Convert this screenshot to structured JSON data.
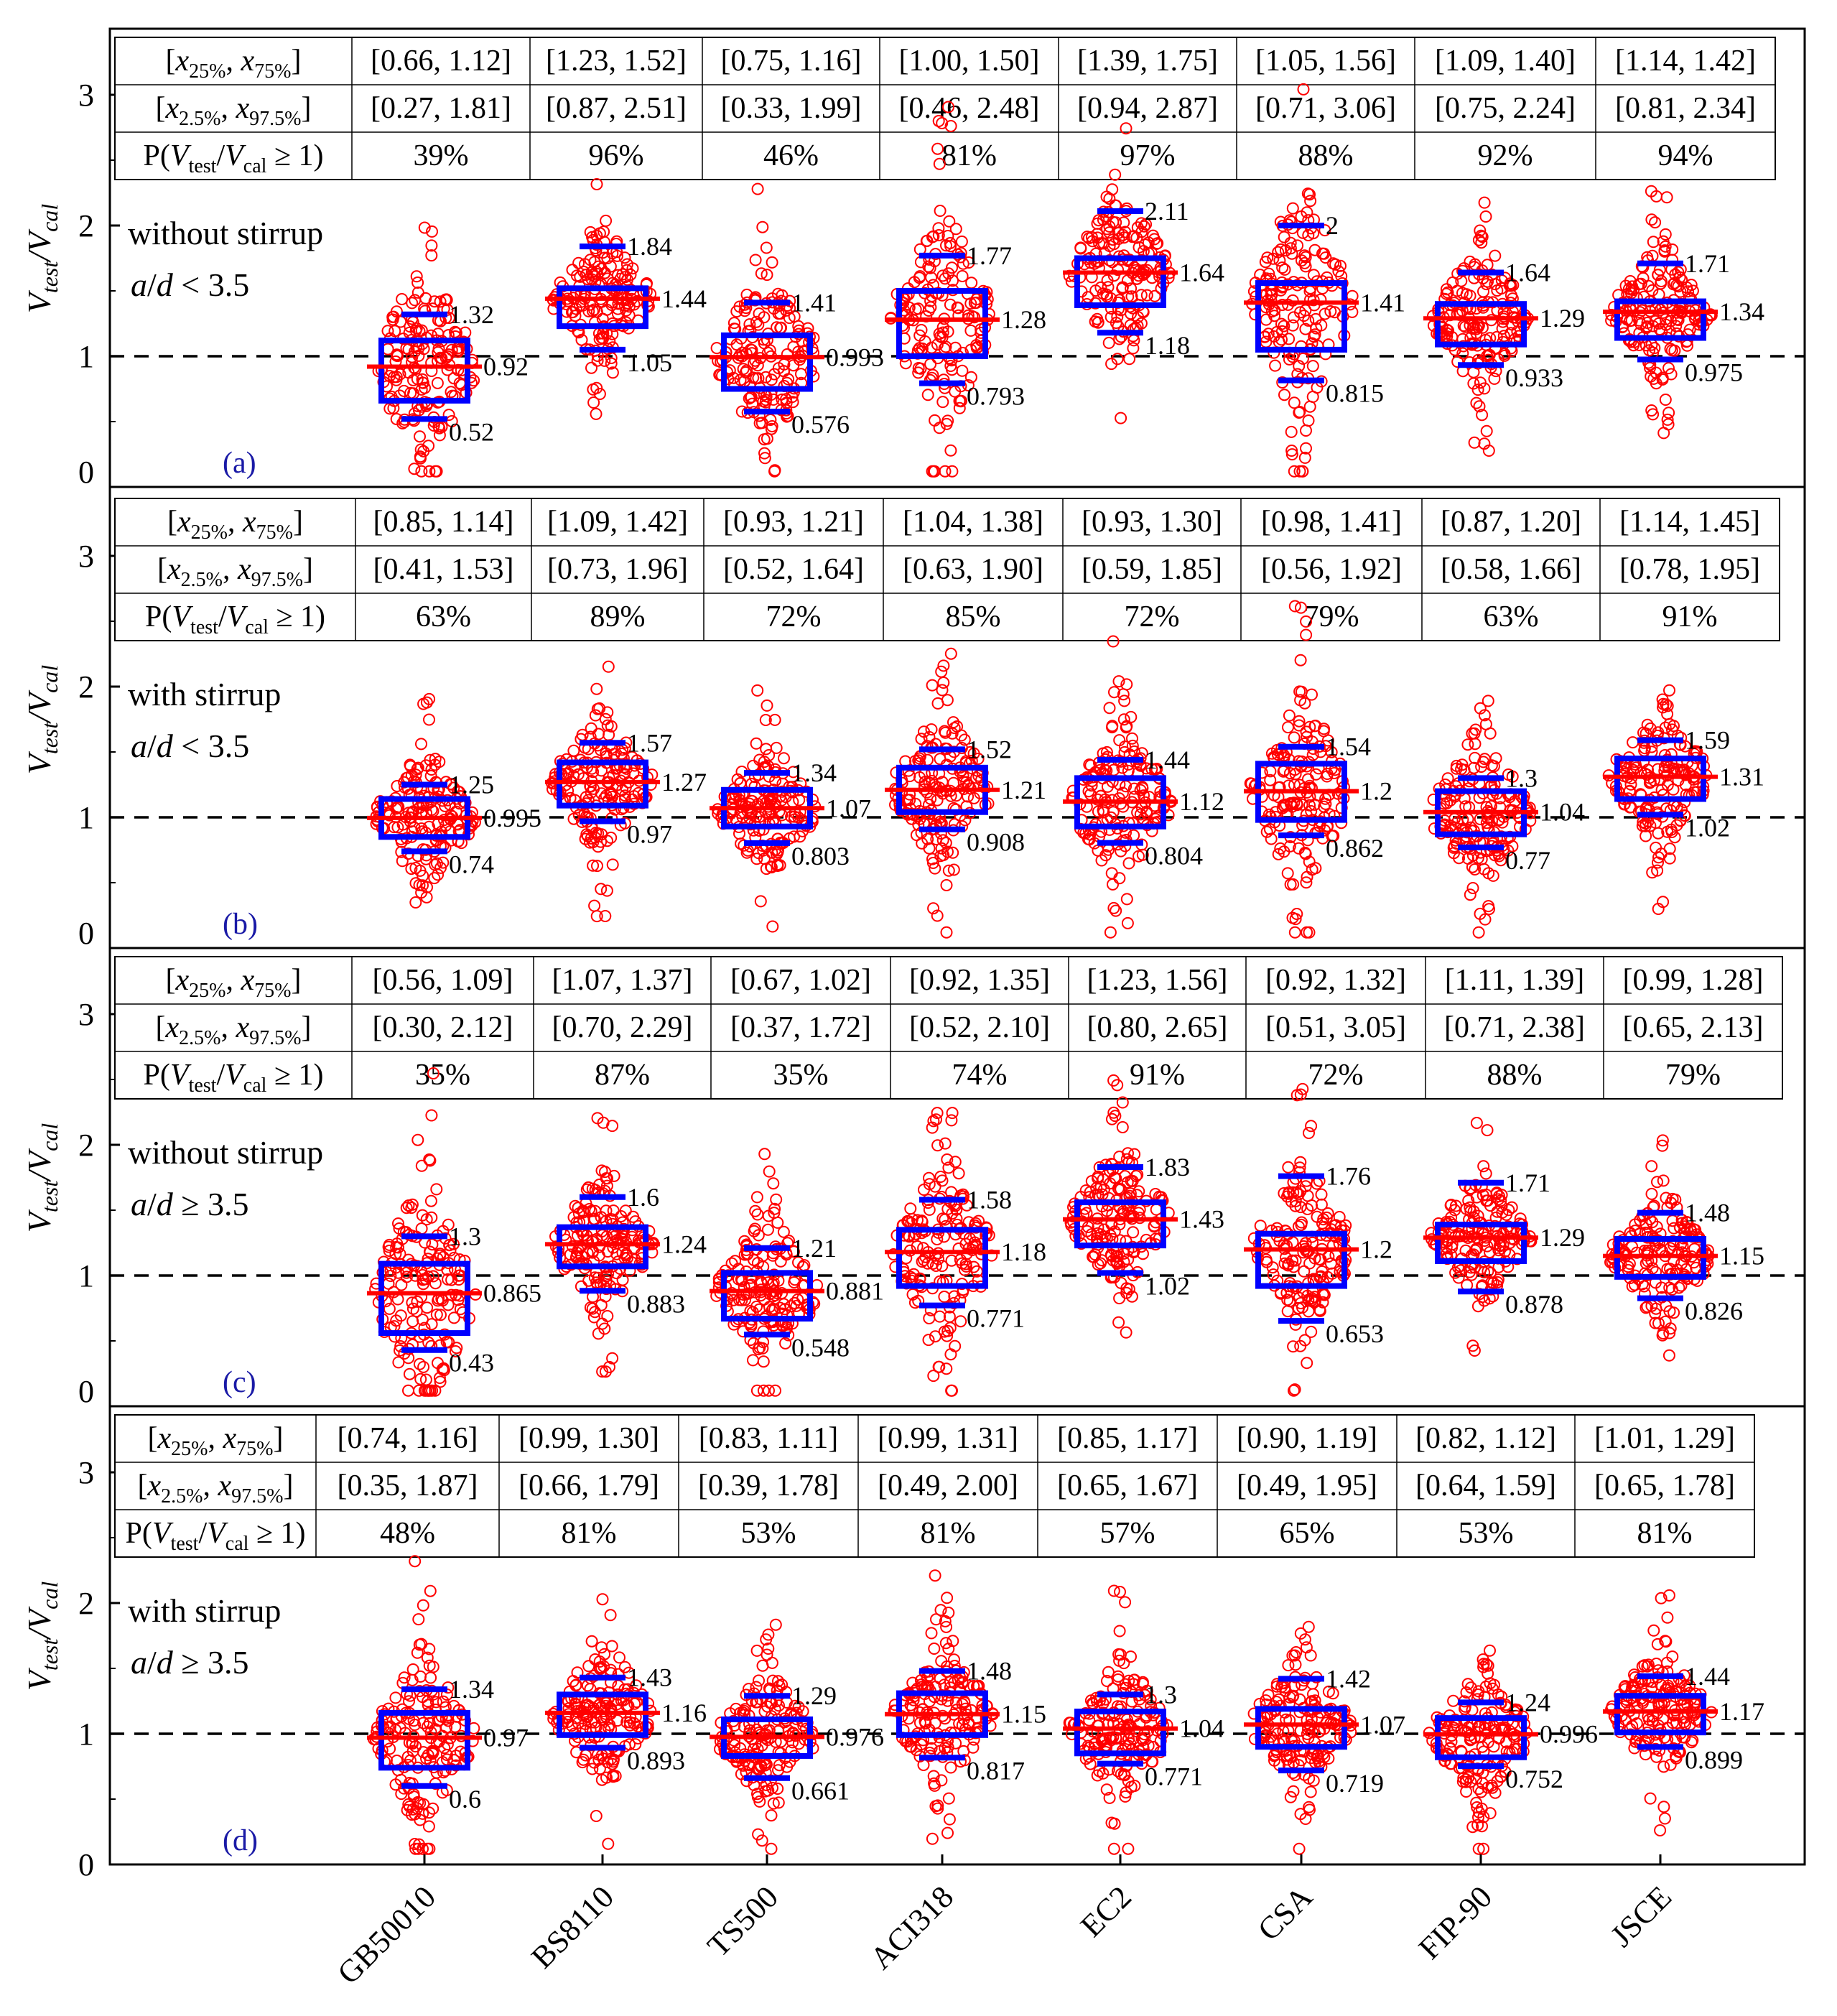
{
  "chart_data": {
    "type": "scatter",
    "categories": [
      "GB50010",
      "BS8110",
      "TS500",
      "ACI318",
      "EC2",
      "CSA",
      "FIP-90",
      "JSCE"
    ],
    "y_label_main": "V",
    "y_label_test_sub": "test",
    "y_label_slash": "/V",
    "y_label_cal_sub": "cal",
    "ylim": [
      0,
      3.5
    ],
    "yticks": [
      "0",
      "1",
      "2",
      "3"
    ],
    "reference_line": 1,
    "row_labels": [
      {
        "pre": "[x",
        "s1": "25%",
        "mid": ", x",
        "s2": "75%",
        "post": "]"
      },
      {
        "pre": "[x",
        "s1": "2.5%",
        "mid": ", x",
        "s2": "97.5%",
        "post": "]"
      },
      {
        "pre": "P(V",
        "s1": "test",
        "mid": "/V",
        "s2": "cal",
        "post": " ≥ 1)"
      }
    ],
    "colors": {
      "points": "#ff0000",
      "box": "#0000ff",
      "median": "#ff0000",
      "refline": "#000000",
      "panel_label": "#1a1aa6"
    },
    "panels": [
      {
        "label": "(a)",
        "note1": "without stirrup",
        "note2_pre": "a",
        "note2_mid": "/",
        "note2_d": "d",
        "note2_post": " < 3.5",
        "table": [
          [
            "[0.66, 1.12]",
            "[1.23, 1.52]",
            "[0.75, 1.16]",
            "[1.00, 1.50]",
            "[1.39, 1.75]",
            "[1.05, 1.56]",
            "[1.09, 1.40]",
            "[1.14, 1.42]"
          ],
          [
            "[0.27, 1.81]",
            "[0.87, 2.51]",
            "[0.33, 1.99]",
            "[0.46, 2.48]",
            "[0.94, 2.87]",
            "[0.71, 3.06]",
            "[0.75, 2.24]",
            "[0.81, 2.34]"
          ],
          [
            "39%",
            "96%",
            "46%",
            "81%",
            "97%",
            "88%",
            "92%",
            "94%"
          ]
        ],
        "q1": [
          0.66,
          1.23,
          0.75,
          1.0,
          1.39,
          1.05,
          1.09,
          1.14
        ],
        "q3": [
          1.12,
          1.52,
          1.16,
          1.5,
          1.75,
          1.56,
          1.4,
          1.42
        ],
        "median": [
          0.92,
          1.44,
          0.993,
          1.28,
          1.64,
          1.41,
          1.29,
          1.34
        ],
        "upper": [
          1.32,
          1.84,
          1.41,
          1.77,
          2.11,
          2,
          1.64,
          1.71
        ],
        "lower": [
          0.52,
          1.05,
          0.576,
          0.793,
          1.18,
          0.815,
          0.933,
          0.975
        ],
        "median_text": [
          "0.92",
          "1.44",
          "0.993",
          "1.28",
          "1.64",
          "1.41",
          "1.29",
          "1.34"
        ],
        "upper_text": [
          "1.32",
          "1.84",
          "1.41",
          "1.77",
          "2.11",
          "2",
          "1.64",
          "1.71"
        ],
        "lower_text": [
          "0.52",
          "1.05",
          "0.576",
          "0.793",
          "1.18",
          "0.815",
          "0.933",
          "0.975"
        ]
      },
      {
        "label": "(b)",
        "note1": "with stirrup",
        "note2_pre": "a",
        "note2_mid": "/",
        "note2_d": "d",
        "note2_post": " < 3.5",
        "table": [
          [
            "[0.85, 1.14]",
            "[1.09, 1.42]",
            "[0.93, 1.21]",
            "[1.04, 1.38]",
            "[0.93, 1.30]",
            "[0.98, 1.41]",
            "[0.87, 1.20]",
            "[1.14, 1.45]"
          ],
          [
            "[0.41, 1.53]",
            "[0.73, 1.96]",
            "[0.52, 1.64]",
            "[0.63, 1.90]",
            "[0.59, 1.85]",
            "[0.56, 1.92]",
            "[0.58, 1.66]",
            "[0.78, 1.95]"
          ],
          [
            "63%",
            "89%",
            "72%",
            "85%",
            "72%",
            "79%",
            "63%",
            "91%"
          ]
        ],
        "q1": [
          0.85,
          1.09,
          0.93,
          1.04,
          0.93,
          0.98,
          0.87,
          1.14
        ],
        "q3": [
          1.14,
          1.42,
          1.21,
          1.38,
          1.3,
          1.41,
          1.2,
          1.45
        ],
        "median": [
          0.995,
          1.27,
          1.07,
          1.21,
          1.12,
          1.2,
          1.04,
          1.31
        ],
        "upper": [
          1.25,
          1.57,
          1.34,
          1.52,
          1.44,
          1.54,
          1.3,
          1.59
        ],
        "lower": [
          0.74,
          0.97,
          0.803,
          0.908,
          0.804,
          0.862,
          0.77,
          1.02
        ],
        "median_text": [
          "0.995",
          "1.27",
          "1.07",
          "1.21",
          "1.12",
          "1.2",
          "1.04",
          "1.31"
        ],
        "upper_text": [
          "1.25",
          "1.57",
          "1.34",
          "1.52",
          "1.44",
          "1.54",
          "1.3",
          "1.59"
        ],
        "lower_text": [
          "0.74",
          "0.97",
          "0.803",
          "0.908",
          "0.804",
          "0.862",
          "0.77",
          "1.02"
        ]
      },
      {
        "label": "(c)",
        "note1": "without stirrup",
        "note2_pre": "a",
        "note2_mid": "/",
        "note2_d": "d",
        "note2_post": " ≥ 3.5",
        "table": [
          [
            "[0.56, 1.09]",
            "[1.07, 1.37]",
            "[0.67, 1.02]",
            "[0.92, 1.35]",
            "[1.23, 1.56]",
            "[0.92, 1.32]",
            "[1.11, 1.39]",
            "[0.99, 1.28]"
          ],
          [
            "[0.30, 2.12]",
            "[0.70, 2.29]",
            "[0.37, 1.72]",
            "[0.52, 2.10]",
            "[0.80, 2.65]",
            "[0.51, 3.05]",
            "[0.71, 2.38]",
            "[0.65, 2.13]"
          ],
          [
            "35%",
            "87%",
            "35%",
            "74%",
            "91%",
            "72%",
            "88%",
            "79%"
          ]
        ],
        "q1": [
          0.56,
          1.07,
          0.67,
          0.92,
          1.23,
          0.92,
          1.11,
          0.99
        ],
        "q3": [
          1.09,
          1.37,
          1.02,
          1.35,
          1.56,
          1.32,
          1.39,
          1.28
        ],
        "median": [
          0.865,
          1.24,
          0.881,
          1.18,
          1.43,
          1.2,
          1.29,
          1.15
        ],
        "upper": [
          1.3,
          1.6,
          1.21,
          1.58,
          1.83,
          1.76,
          1.71,
          1.48
        ],
        "lower": [
          0.43,
          0.883,
          0.548,
          0.771,
          1.02,
          0.653,
          0.878,
          0.826
        ],
        "median_text": [
          "0.865",
          "1.24",
          "0.881",
          "1.18",
          "1.43",
          "1.2",
          "1.29",
          "1.15"
        ],
        "upper_text": [
          "1.3",
          "1.6",
          "1.21",
          "1.58",
          "1.83",
          "1.76",
          "1.71",
          "1.48"
        ],
        "lower_text": [
          "0.43",
          "0.883",
          "0.548",
          "0.771",
          "1.02",
          "0.653",
          "0.878",
          "0.826"
        ]
      },
      {
        "label": "(d)",
        "note1": "with stirrup",
        "note2_pre": "a",
        "note2_mid": "/",
        "note2_d": "d",
        "note2_post": " ≥ 3.5",
        "table": [
          [
            "[0.74, 1.16]",
            "[0.99, 1.30]",
            "[0.83, 1.11]",
            "[0.99, 1.31]",
            "[0.85, 1.17]",
            "[0.90, 1.19]",
            "[0.82, 1.12]",
            "[1.01, 1.29]"
          ],
          [
            "[0.35, 1.87]",
            "[0.66, 1.79]",
            "[0.39, 1.78]",
            "[0.49, 2.00]",
            "[0.65, 1.67]",
            "[0.49, 1.95]",
            "[0.64, 1.59]",
            "[0.65, 1.78]"
          ],
          [
            "48%",
            "81%",
            "53%",
            "81%",
            "57%",
            "65%",
            "53%",
            "81%"
          ]
        ],
        "q1": [
          0.74,
          0.99,
          0.83,
          0.99,
          0.85,
          0.9,
          0.82,
          1.01
        ],
        "q3": [
          1.16,
          1.3,
          1.11,
          1.31,
          1.17,
          1.19,
          1.12,
          1.29
        ],
        "median": [
          0.97,
          1.16,
          0.976,
          1.15,
          1.04,
          1.07,
          0.996,
          1.17
        ],
        "upper": [
          1.34,
          1.43,
          1.29,
          1.48,
          1.3,
          1.42,
          1.24,
          1.44
        ],
        "lower": [
          0.6,
          0.893,
          0.661,
          0.817,
          0.771,
          0.719,
          0.752,
          0.899
        ],
        "median_text": [
          "0.97",
          "1.16",
          "0.976",
          "1.15",
          "1.04",
          "1.07",
          "0.996",
          "1.17"
        ],
        "upper_text": [
          "1.34",
          "1.43",
          "1.29",
          "1.48",
          "1.3",
          "1.42",
          "1.24",
          "1.44"
        ],
        "lower_text": [
          "0.6",
          "0.893",
          "0.661",
          "0.817",
          "0.771",
          "0.719",
          "0.752",
          "0.899"
        ]
      }
    ]
  }
}
